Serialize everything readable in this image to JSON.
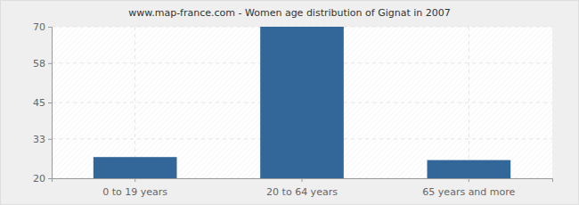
{
  "chart_data": {
    "type": "bar",
    "title": "www.map-france.com - Women age distribution of Gignat in 2007",
    "categories": [
      "0 to 19 years",
      "20 to 64 years",
      "65 years and more"
    ],
    "values": [
      27,
      70,
      26
    ],
    "color": "#336699",
    "ylim": [
      20,
      70
    ],
    "yticks": [
      20,
      33,
      45,
      58,
      70
    ],
    "grid": true
  }
}
